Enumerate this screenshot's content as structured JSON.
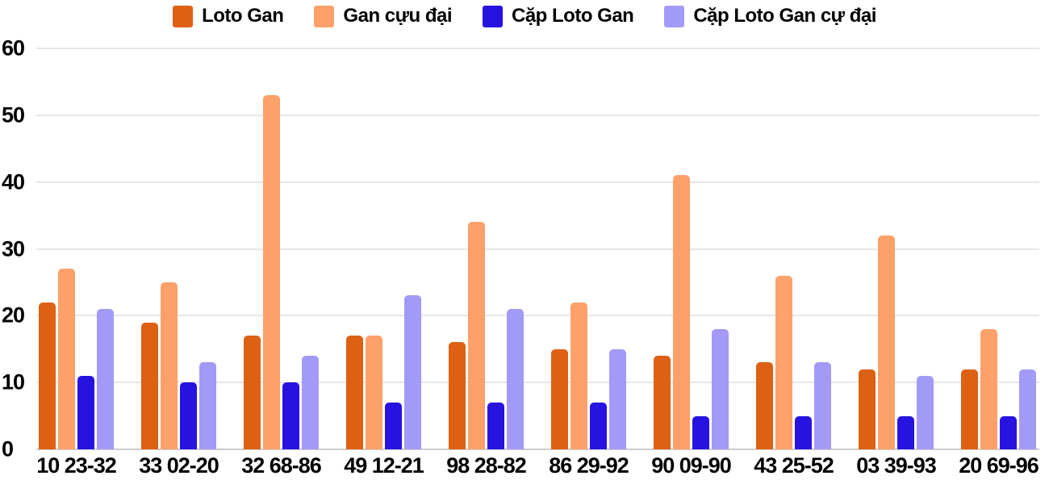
{
  "chart_data": {
    "type": "bar",
    "title": "",
    "xlabel": "",
    "ylabel": "",
    "ylim": [
      0,
      60
    ],
    "yticks": [
      0,
      10,
      20,
      30,
      40,
      50,
      60
    ],
    "grid": true,
    "legend_position": "top",
    "categories": [
      "10 23-32",
      "33 02-20",
      "32 68-86",
      "49 12-21",
      "98 28-82",
      "86 29-92",
      "90 09-90",
      "43 25-52",
      "03 39-93",
      "20 69-96"
    ],
    "series": [
      {
        "name": "Loto Gan",
        "color": "#dd6013",
        "values": [
          22,
          19,
          17,
          17,
          16,
          15,
          14,
          13,
          12,
          12
        ]
      },
      {
        "name": "Gan cựu đại",
        "color": "#fda069",
        "values": [
          27,
          25,
          53,
          17,
          34,
          22,
          41,
          26,
          32,
          18
        ]
      },
      {
        "name": "Cặp Loto Gan",
        "color": "#2713df",
        "values": [
          11,
          10,
          10,
          7,
          7,
          7,
          5,
          5,
          5,
          5
        ]
      },
      {
        "name": "Cặp Loto Gan cự đại",
        "color": "#a29af6",
        "values": [
          21,
          13,
          14,
          23,
          21,
          15,
          18,
          13,
          11,
          12
        ]
      }
    ],
    "colors": {
      "gridline": "#e6e6e6",
      "baseline": "#cccccc",
      "text": "#000000",
      "background": "#ffffff"
    }
  }
}
